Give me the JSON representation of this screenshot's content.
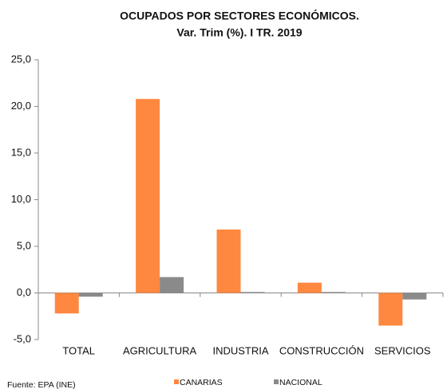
{
  "chart_data": {
    "type": "bar",
    "title": "OCUPADOS POR SECTORES ECONÓMICOS.",
    "subtitle": "Var. Trim (%). I TR. 2019",
    "source": "Fuente: EPA (INE)",
    "categories": [
      "TOTAL",
      "AGRICULTURA",
      "INDUSTRIA",
      "CONSTRUCCIÓN",
      "SERVICIOS"
    ],
    "series": [
      {
        "name": "CANARIAS",
        "color": "#ff8840",
        "values": [
          -2.2,
          20.8,
          6.8,
          1.1,
          -3.5
        ]
      },
      {
        "name": "NACIONAL",
        "color": "#8a8a8a",
        "values": [
          -0.4,
          1.7,
          0.1,
          0.1,
          -0.7
        ]
      }
    ],
    "ylim": [
      -5,
      25
    ],
    "yticks": [
      {
        "value": -5,
        "label": "-5,0"
      },
      {
        "value": 0,
        "label": "0,0"
      },
      {
        "value": 5,
        "label": "5,0"
      },
      {
        "value": 10,
        "label": "10,0"
      },
      {
        "value": 15,
        "label": "15,0"
      },
      {
        "value": 20,
        "label": "20,0"
      },
      {
        "value": 25,
        "label": "25,0"
      }
    ],
    "grid": false,
    "legend": "bottom"
  }
}
